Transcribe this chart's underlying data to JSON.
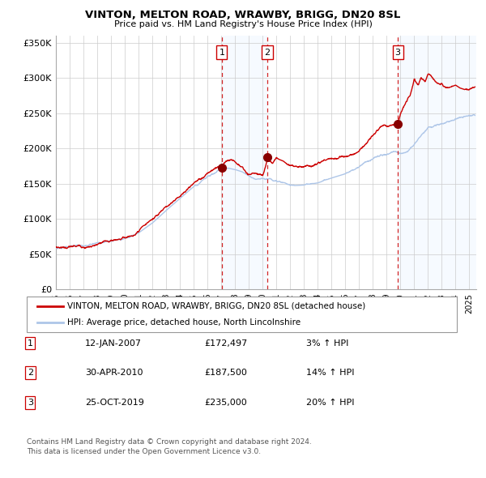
{
  "title": "VINTON, MELTON ROAD, WRAWBY, BRIGG, DN20 8SL",
  "subtitle": "Price paid vs. HM Land Registry's House Price Index (HPI)",
  "legend_line1": "VINTON, MELTON ROAD, WRAWBY, BRIGG, DN20 8SL (detached house)",
  "legend_line2": "HPI: Average price, detached house, North Lincolnshire",
  "footer1": "Contains HM Land Registry data © Crown copyright and database right 2024.",
  "footer2": "This data is licensed under the Open Government Licence v3.0.",
  "sale_labels": [
    "1",
    "2",
    "3"
  ],
  "sale_dates_str": [
    "12-JAN-2007",
    "30-APR-2010",
    "25-OCT-2019"
  ],
  "sale_prices_str": [
    "£172,497",
    "£187,500",
    "£235,000"
  ],
  "sale_hpi_str": [
    "3% ↑ HPI",
    "14% ↑ HPI",
    "20% ↑ HPI"
  ],
  "sale_years": [
    2007.04,
    2010.33,
    2019.81
  ],
  "sale_prices": [
    172497,
    187500,
    235000
  ],
  "hpi_color": "#aec6e8",
  "price_color": "#cc0000",
  "sale_dot_color": "#880000",
  "dashed_line_color": "#cc0000",
  "shade_color": "#ddeeff",
  "background_color": "#ffffff",
  "grid_color": "#cccccc",
  "ylim": [
    0,
    360000
  ],
  "xlim_start": 1995.0,
  "xlim_end": 2025.5,
  "yticks": [
    0,
    50000,
    100000,
    150000,
    200000,
    250000,
    300000,
    350000
  ],
  "ytick_labels": [
    "£0",
    "£50K",
    "£100K",
    "£150K",
    "£200K",
    "£250K",
    "£300K",
    "£350K"
  ],
  "xticks": [
    1995,
    1996,
    1997,
    1998,
    1999,
    2000,
    2001,
    2002,
    2003,
    2004,
    2005,
    2006,
    2007,
    2008,
    2009,
    2010,
    2011,
    2012,
    2013,
    2014,
    2015,
    2016,
    2017,
    2018,
    2019,
    2020,
    2021,
    2022,
    2023,
    2024,
    2025
  ]
}
